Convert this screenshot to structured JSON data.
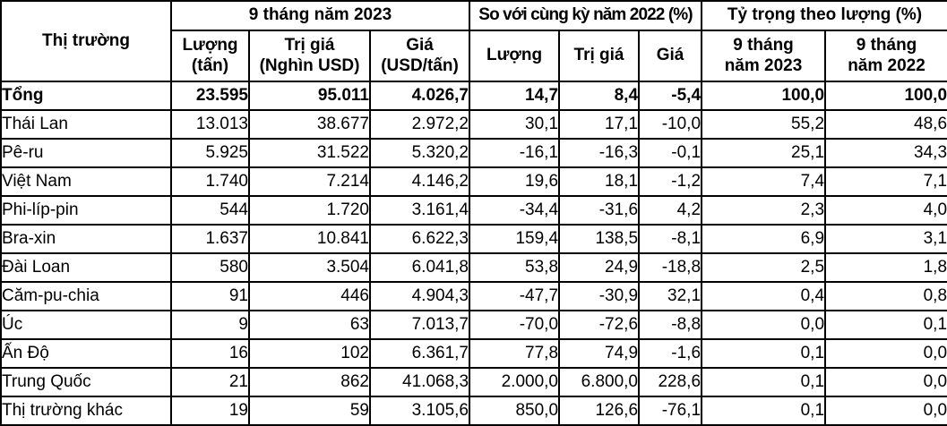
{
  "colors": {
    "border": "#000000",
    "background": "#ffffff",
    "text": "#000000"
  },
  "table": {
    "header": {
      "market_label": "Thị trường",
      "group_2023": "9 tháng năm 2023",
      "group_compare": "So với cùng kỳ năm 2022 (%)",
      "group_share": "Tỷ trọng theo lượng (%)",
      "sub_headers": [
        "Lượng\n(tấn)",
        "Trị giá\n(Nghìn USD)",
        "Giá\n(USD/tấn)",
        "Lượng",
        "Trị giá",
        "Giá",
        "9 tháng\nnăm 2023",
        "9 tháng\nnăm 2022"
      ]
    },
    "rows": [
      {
        "label": "Tổng",
        "bold": true,
        "values": [
          "23.595",
          "95.011",
          "4.026,7",
          "14,7",
          "8,4",
          "-5,4",
          "100,0",
          "100,0"
        ]
      },
      {
        "label": "Thái Lan",
        "bold": false,
        "values": [
          "13.013",
          "38.677",
          "2.972,2",
          "30,1",
          "17,1",
          "-10,0",
          "55,2",
          "48,6"
        ]
      },
      {
        "label": "Pê-ru",
        "bold": false,
        "values": [
          "5.925",
          "31.522",
          "5.320,2",
          "-16,1",
          "-16,3",
          "-0,1",
          "25,1",
          "34,3"
        ]
      },
      {
        "label": "Việt Nam",
        "bold": false,
        "values": [
          "1.740",
          "7.214",
          "4.146,2",
          "19,6",
          "18,1",
          "-1,2",
          "7,4",
          "7,1"
        ]
      },
      {
        "label": "Phi-líp-pin",
        "bold": false,
        "values": [
          "544",
          "1.720",
          "3.161,4",
          "-34,4",
          "-31,6",
          "4,2",
          "2,3",
          "4,0"
        ]
      },
      {
        "label": "Bra-xin",
        "bold": false,
        "values": [
          "1.637",
          "10.841",
          "6.622,3",
          "159,4",
          "138,5",
          "-8,1",
          "6,9",
          "3,1"
        ]
      },
      {
        "label": "Đài Loan",
        "bold": false,
        "values": [
          "580",
          "3.504",
          "6.041,8",
          "53,8",
          "24,9",
          "-18,8",
          "2,5",
          "1,8"
        ]
      },
      {
        "label": "Căm-pu-chia",
        "bold": false,
        "values": [
          "91",
          "446",
          "4.904,3",
          "-47,7",
          "-30,9",
          "32,1",
          "0,4",
          "0,8"
        ]
      },
      {
        "label": "Úc",
        "bold": false,
        "values": [
          "9",
          "63",
          "7.013,7",
          "-70,0",
          "-72,6",
          "-8,8",
          "0,0",
          "0,1"
        ]
      },
      {
        "label": "Ấn Độ",
        "bold": false,
        "values": [
          "16",
          "102",
          "6.361,7",
          "77,8",
          "74,9",
          "-1,6",
          "0,1",
          "0,0"
        ]
      },
      {
        "label": "Trung Quốc",
        "bold": false,
        "values": [
          "21",
          "862",
          "41.068,3",
          "2.000,0",
          "6.800,0",
          "228,6",
          "0,1",
          "0,0"
        ]
      },
      {
        "label": "Thị trường khác",
        "bold": false,
        "values": [
          "19",
          "59",
          "3.105,6",
          "850,0",
          "126,6",
          "-76,1",
          "0,1",
          "0,0"
        ]
      }
    ]
  }
}
